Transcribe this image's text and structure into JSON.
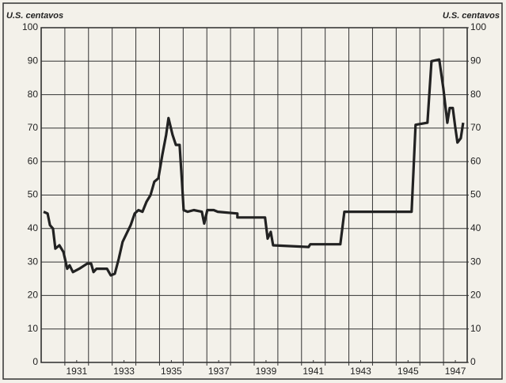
{
  "chart_data": {
    "type": "line",
    "ylabel": "U.S. centavos",
    "y2label": "U.S. centavos",
    "xlim": [
      1930,
      1948
    ],
    "xticks": [
      {
        "value": 1931.5,
        "label": "1931"
      },
      {
        "value": 1933.5,
        "label": "1933"
      },
      {
        "value": 1935.5,
        "label": "1935"
      },
      {
        "value": 1937.5,
        "label": "1937"
      },
      {
        "value": 1939.5,
        "label": "1939"
      },
      {
        "value": 1941.5,
        "label": "1941"
      },
      {
        "value": 1943.5,
        "label": "1943"
      },
      {
        "value": 1945.5,
        "label": "1945"
      },
      {
        "value": 1947.5,
        "label": "1947"
      }
    ],
    "xgrid": [
      1931,
      1932,
      1933,
      1934,
      1935,
      1936,
      1937,
      1938,
      1939,
      1940,
      1941,
      1942,
      1943,
      1944,
      1945,
      1946,
      1947
    ],
    "ylim": [
      0,
      100
    ],
    "yticks": [
      0,
      10,
      20,
      30,
      40,
      50,
      60,
      70,
      80,
      90,
      100
    ],
    "y2lim": [
      0,
      100
    ],
    "y2ticks": [
      0,
      10,
      20,
      30,
      40,
      50,
      60,
      70,
      80,
      90,
      100
    ],
    "grid": true,
    "color": "#222222",
    "x": [
      1930.1,
      1930.27,
      1930.37,
      1930.5,
      1930.6,
      1930.77,
      1930.94,
      1931.1,
      1931.2,
      1931.34,
      1931.61,
      1931.94,
      1932.11,
      1932.21,
      1932.34,
      1932.78,
      1932.94,
      1933.11,
      1933.28,
      1933.44,
      1933.61,
      1933.78,
      1933.95,
      1934.11,
      1934.28,
      1934.45,
      1934.62,
      1934.78,
      1934.95,
      1935.12,
      1935.28,
      1935.38,
      1935.55,
      1935.69,
      1935.85,
      1935.95,
      1936.02,
      1936.19,
      1936.45,
      1936.79,
      1936.89,
      1937.02,
      1937.29,
      1937.46,
      1938.29,
      1938.29,
      1939.46,
      1939.57,
      1939.7,
      1939.8,
      1941.3,
      1941.37,
      1942.64,
      1942.81,
      1945.65,
      1945.82,
      1946.32,
      1946.49,
      1946.82,
      1946.99,
      1947.16,
      1947.26,
      1947.39,
      1947.49,
      1947.59,
      1947.73,
      1947.83
    ],
    "values": [
      45,
      44.5,
      41,
      40,
      34,
      35,
      33,
      28,
      29,
      27,
      28,
      29.5,
      29.5,
      27,
      28,
      28,
      26,
      26.5,
      31,
      36,
      38.5,
      41,
      44.5,
      45.5,
      45,
      48,
      50,
      54,
      55,
      62,
      68,
      73,
      68,
      65,
      65,
      54,
      45.5,
      45,
      45.5,
      45,
      41.5,
      45.5,
      45.5,
      45,
      44.5,
      43.3,
      43.3,
      37,
      39,
      35,
      34.5,
      35.3,
      35.3,
      45,
      45,
      71,
      71.6,
      90,
      90.5,
      82,
      71.6,
      76,
      76,
      70.5,
      65.7,
      67,
      71.6
    ]
  }
}
